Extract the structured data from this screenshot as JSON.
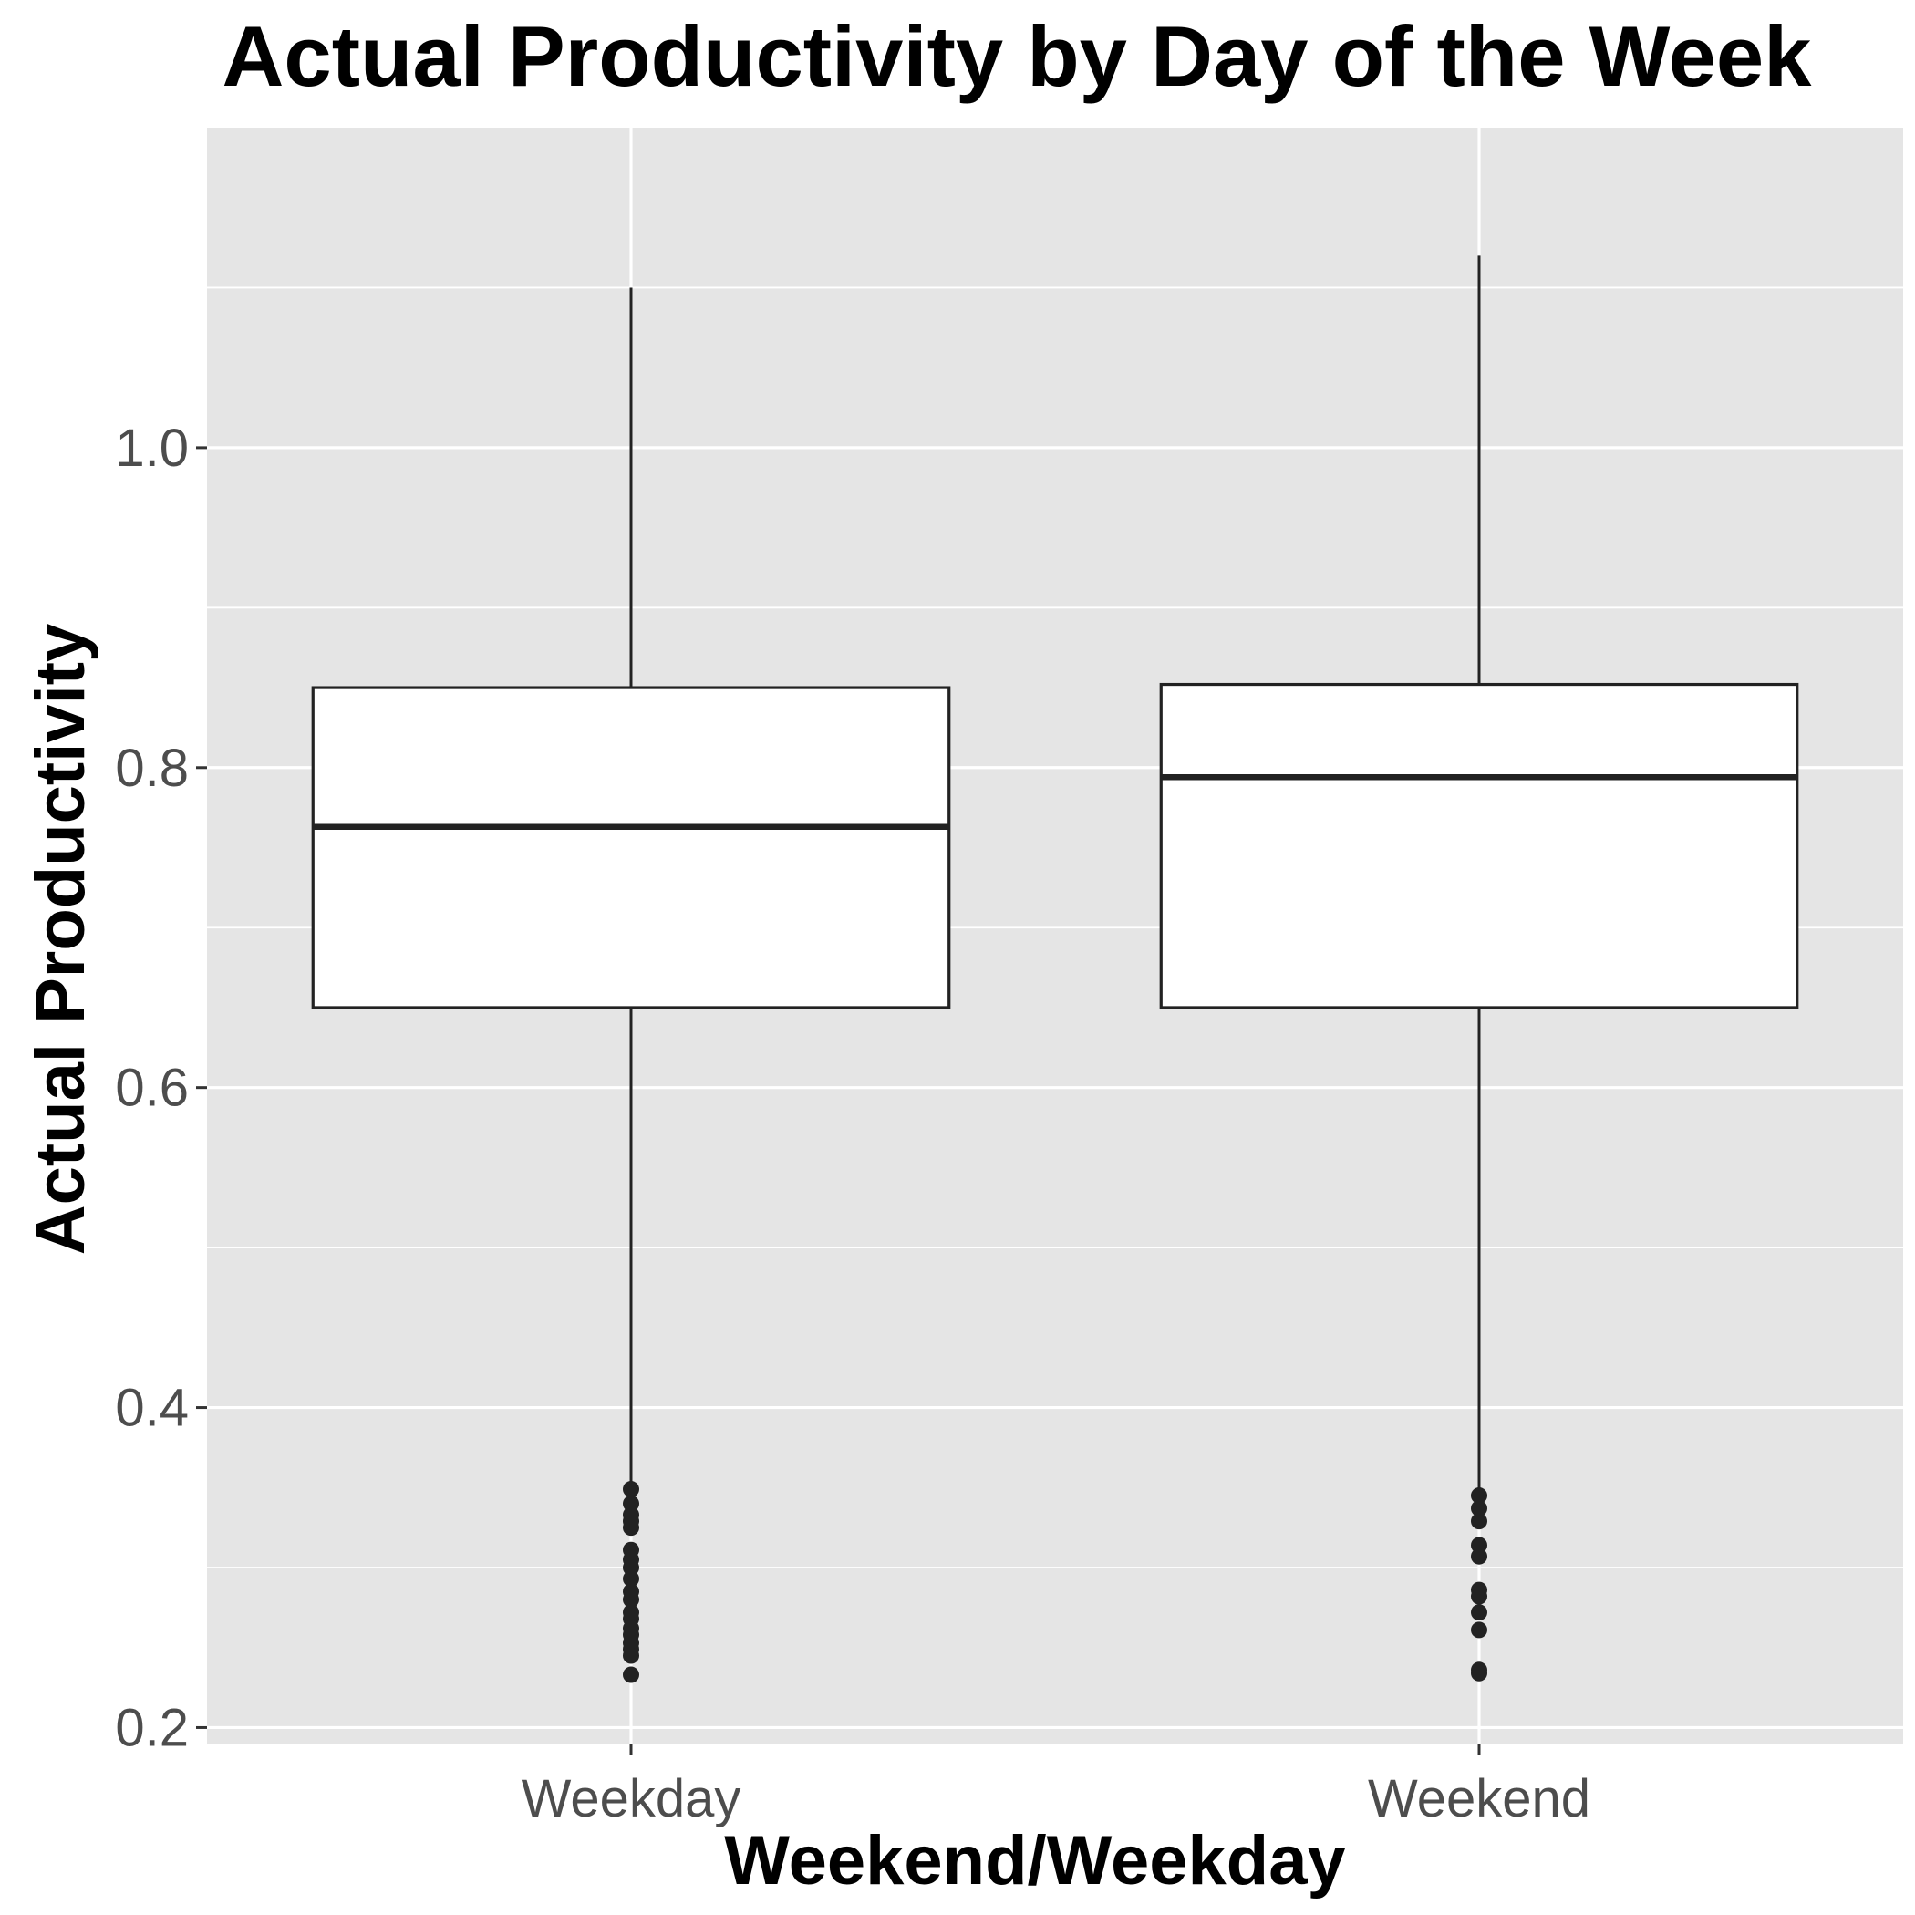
{
  "chart_data": {
    "type": "boxplot",
    "title": "Actual Productivity by Day of the Week",
    "xlabel": "Weekend/Weekday",
    "ylabel": "Actual Productivity",
    "ylim": [
      0.19,
      1.2
    ],
    "y_ticks": [
      0.2,
      0.4,
      0.6,
      0.8,
      1.0
    ],
    "y_tick_labels": [
      "0.2",
      "0.4",
      "0.6",
      "0.8",
      "1.0"
    ],
    "categories": [
      "Weekday",
      "Weekend"
    ],
    "boxes": [
      {
        "category": "Weekday",
        "whisker_low": 0.351,
        "q1": 0.65,
        "median": 0.763,
        "q3": 0.85,
        "whisker_high": 1.1,
        "outliers": [
          0.349,
          0.34,
          0.333,
          0.329,
          0.325,
          0.311,
          0.305,
          0.3,
          0.293,
          0.285,
          0.28,
          0.272,
          0.268,
          0.262,
          0.258,
          0.253,
          0.249,
          0.245,
          0.233
        ]
      },
      {
        "category": "Weekend",
        "whisker_low": 0.347,
        "q1": 0.65,
        "median": 0.794,
        "q3": 0.852,
        "whisker_high": 1.12,
        "outliers": [
          0.345,
          0.337,
          0.329,
          0.314,
          0.307,
          0.286,
          0.282,
          0.272,
          0.261,
          0.236,
          0.234
        ]
      }
    ],
    "grid": true,
    "panel_background": "#e5e5e5",
    "grid_color": "#ffffff",
    "box_fill": "#ffffff",
    "box_stroke": "#222222",
    "outlier_color": "#222222"
  }
}
